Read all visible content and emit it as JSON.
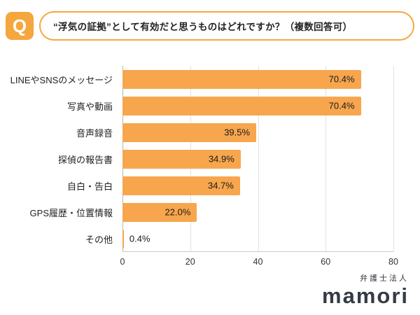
{
  "question": {
    "badge": "Q",
    "text": "“浮気の証拠”として有効だと思うものはどれですか？（複数回答可）"
  },
  "colors": {
    "accent_orange": "#F5A93F",
    "bar_orange": "#F7A64D",
    "logo_dark": "#343B45"
  },
  "chart_data": {
    "type": "bar",
    "orientation": "horizontal",
    "title": "“浮気の証拠”として有効だと思うものはどれですか？（複数回答可）",
    "categories": [
      "LINEやSNSのメッセージ",
      "写真や動画",
      "音声録音",
      "探偵の報告書",
      "自白・告白",
      "GPS履歴・位置情報",
      "その他"
    ],
    "values": [
      70.4,
      70.4,
      39.5,
      34.9,
      34.7,
      22.0,
      0.4
    ],
    "value_labels": [
      "70.4%",
      "70.4%",
      "39.5%",
      "34.9%",
      "34.7%",
      "22.0%",
      "0.4%"
    ],
    "xlabel": "",
    "ylabel": "",
    "xlim": [
      0,
      80
    ],
    "xticks": [
      0,
      20,
      40,
      60,
      80
    ],
    "bar_color": "#F7A64D",
    "grid": true,
    "legend": "none"
  },
  "footer": {
    "logo_small": "弁護士法人",
    "logo_main": "mamori"
  }
}
